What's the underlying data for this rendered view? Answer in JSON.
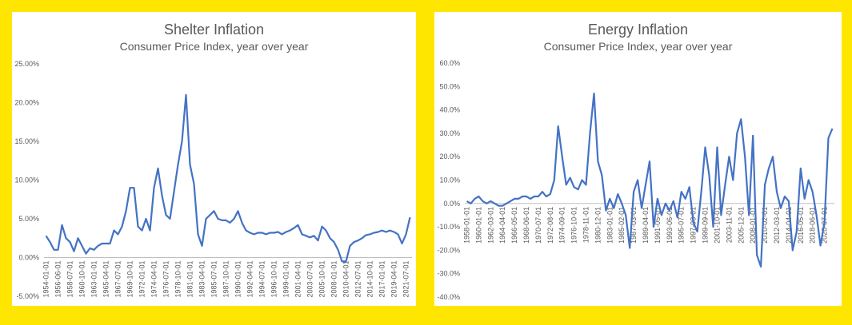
{
  "chart_data": [
    {
      "type": "line",
      "title": "Shelter Inflation",
      "subtitle": "Consumer Price Index, year over year",
      "categories": [
        "1954-01-01",
        null,
        null,
        "1956-06-01",
        null,
        null,
        "1958-07-01",
        null,
        null,
        "1960-10-01",
        null,
        null,
        "1963-01-01",
        null,
        null,
        "1965-04-01",
        null,
        null,
        "1967-07-01",
        null,
        null,
        "1969-10-01",
        null,
        null,
        "1972-01-01",
        null,
        null,
        "1974-04-01",
        null,
        null,
        "1976-07-01",
        null,
        null,
        "1978-10-01",
        null,
        null,
        "1981-01-01",
        null,
        null,
        "1983-04-01",
        null,
        null,
        "1985-07-01",
        null,
        null,
        "1987-10-01",
        null,
        null,
        "1990-01-01",
        null,
        null,
        "1992-04-01",
        null,
        null,
        "1994-07-01",
        null,
        null,
        "1996-10-01",
        null,
        null,
        "1999-01-01",
        null,
        null,
        "2001-04-01",
        null,
        null,
        "2003-07-01",
        null,
        null,
        "2005-10-01",
        null,
        null,
        "2008-01-01",
        null,
        null,
        "2010-04-01",
        null,
        null,
        "2012-07-01",
        null,
        null,
        "2014-10-01",
        null,
        null,
        "2017-01-01",
        null,
        null,
        "2019-04-01",
        null,
        null,
        "2021-07-01",
        null
      ],
      "series": [
        {
          "color": "#4472c4",
          "values": [
            2.8,
            2.0,
            1.0,
            1.0,
            4.2,
            2.5,
            2.0,
            0.8,
            2.5,
            1.5,
            0.5,
            1.2,
            1.0,
            1.5,
            1.8,
            1.8,
            1.8,
            3.5,
            3.0,
            4.0,
            6.0,
            9.0,
            9.0,
            4.0,
            3.5,
            5.0,
            3.5,
            9.0,
            11.5,
            8.0,
            5.5,
            5.0,
            8.5,
            12.0,
            15.0,
            21.0,
            12.0,
            9.5,
            3.0,
            1.5,
            5.0,
            5.5,
            6.0,
            5.0,
            4.8,
            4.8,
            4.5,
            5.0,
            6.0,
            4.5,
            3.5,
            3.2,
            3.0,
            3.2,
            3.2,
            3.0,
            3.2,
            3.2,
            3.3,
            3.0,
            3.3,
            3.5,
            3.8,
            4.2,
            3.0,
            2.8,
            2.6,
            2.8,
            2.2,
            4.0,
            3.5,
            2.5,
            2.0,
            1.0,
            -0.5,
            -0.5,
            1.5,
            2.0,
            2.2,
            2.5,
            2.9,
            3.0,
            3.2,
            3.3,
            3.5,
            3.3,
            3.5,
            3.3,
            3.0,
            1.8,
            3.0,
            5.2
          ]
        }
      ],
      "ylim": [
        -5,
        25
      ],
      "yticks": [
        {
          "value": -5,
          "label": "-5.00%"
        },
        {
          "value": 0,
          "label": "0.00%"
        },
        {
          "value": 5,
          "label": "5.00%"
        },
        {
          "value": 10,
          "label": "10.00%"
        },
        {
          "value": 15,
          "label": "15.00%"
        },
        {
          "value": 20,
          "label": "20.00%"
        },
        {
          "value": 25,
          "label": "25.00%"
        }
      ],
      "grid": false
    },
    {
      "type": "line",
      "title": "Energy Inflation",
      "subtitle": "Consumer Price Index, year over year",
      "categories": [
        "1958-01-01",
        null,
        null,
        "1960-01-01",
        null,
        null,
        "1962-03-01",
        null,
        null,
        "1964-04-01",
        null,
        null,
        "1966-05-01",
        null,
        null,
        "1968-06-01",
        null,
        null,
        "1970-07-01",
        null,
        null,
        "1972-08-01",
        null,
        null,
        "1974-09-01",
        null,
        null,
        "1976-10-01",
        null,
        null,
        "1978-11-01",
        null,
        null,
        "1980-12-01",
        null,
        null,
        "1983-01-01",
        null,
        null,
        "1985-02-01",
        null,
        null,
        "1987-03-01",
        null,
        null,
        "1989-04-01",
        null,
        null,
        "1991-05-01",
        null,
        null,
        "1993-06-01",
        null,
        null,
        "1995-07-01",
        null,
        null,
        "1997-08-01",
        null,
        null,
        "1999-09-01",
        null,
        null,
        "2001-10-01",
        null,
        null,
        "2003-11-01",
        null,
        null,
        "2005-12-01",
        null,
        null,
        "2008-01-01",
        null,
        null,
        "2010-02-01",
        null,
        null,
        "2012-03-01",
        null,
        null,
        "2014-04-01",
        null,
        null,
        "2016-05-01",
        null,
        null,
        "2018-06-01",
        null,
        null,
        "2020-07-01",
        null,
        null
      ],
      "series": [
        {
          "color": "#4472c4",
          "values": [
            1,
            0,
            2,
            3,
            1,
            0,
            1,
            0,
            -1,
            -1,
            0,
            1,
            2,
            2,
            3,
            3,
            2,
            3,
            3,
            5,
            3,
            4,
            10,
            33,
            20,
            8,
            11,
            7,
            6,
            10,
            8,
            30,
            47,
            18,
            12,
            -3,
            2,
            -2,
            4,
            0,
            -5,
            -19,
            5,
            10,
            -2,
            8,
            18,
            -10,
            2,
            -5,
            0,
            -3,
            1,
            -6,
            5,
            2,
            7,
            -8,
            -12,
            5,
            24,
            12,
            -10,
            24,
            -5,
            8,
            20,
            10,
            30,
            36,
            20,
            -5,
            29,
            -22,
            -27,
            8,
            15,
            20,
            5,
            -2,
            3,
            1,
            -20,
            -12,
            15,
            2,
            10,
            5,
            -5,
            -18,
            -8,
            28,
            32
          ]
        }
      ],
      "ylim": [
        -40,
        60
      ],
      "yticks": [
        {
          "value": -40,
          "label": "-40.0%"
        },
        {
          "value": -30,
          "label": "-30.0%"
        },
        {
          "value": -20,
          "label": "-20.0%"
        },
        {
          "value": -10,
          "label": "-10.0%"
        },
        {
          "value": 0,
          "label": "0.0%"
        },
        {
          "value": 10,
          "label": "10.0%"
        },
        {
          "value": 20,
          "label": "20.0%"
        },
        {
          "value": 30,
          "label": "30.0%"
        },
        {
          "value": 40,
          "label": "40.0%"
        },
        {
          "value": 50,
          "label": "50.0%"
        },
        {
          "value": 60,
          "label": "60.0%"
        }
      ],
      "grid": false
    }
  ]
}
